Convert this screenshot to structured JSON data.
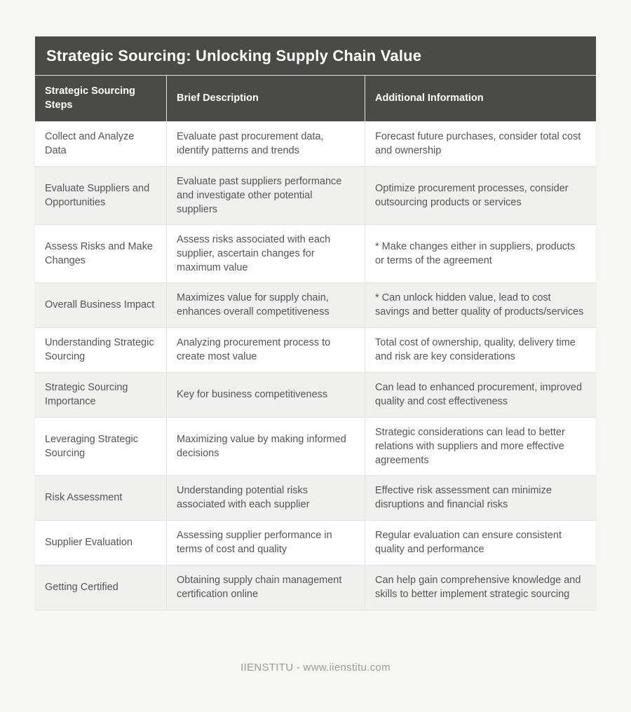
{
  "page": {
    "background_color": "#f6f6f4",
    "header_bg_color": "#4a4a48",
    "row_alt_color": "#f0f0ee",
    "body_text_color": "#55555a",
    "footer_text_color": "#9b9b9b"
  },
  "table": {
    "title": "Strategic Sourcing: Unlocking Supply Chain Value",
    "columns": [
      "Strategic Sourcing Steps",
      "Brief Description",
      "Additional Information"
    ],
    "rows": [
      {
        "step": "Collect and Analyze Data",
        "desc": "Evaluate past procurement data, identify patterns and trends",
        "info": "Forecast future purchases, consider total cost and ownership"
      },
      {
        "step": "Evaluate Suppliers and Opportunities",
        "desc": "Evaluate past suppliers performance and investigate other potential suppliers",
        "info": "Optimize procurement processes, consider outsourcing products or services"
      },
      {
        "step": "Assess Risks and Make Changes",
        "desc": "Assess risks associated with each supplier, ascertain changes for maximum value",
        "info": "* Make changes either in suppliers, products or terms of the agreement"
      },
      {
        "step": "Overall Business Impact",
        "desc": "Maximizes value for supply chain, enhances overall competitiveness",
        "info": "* Can unlock hidden value, lead to cost savings and better quality of products/services"
      },
      {
        "step": "Understanding Strategic Sourcing",
        "desc": "Analyzing procurement process to create most value",
        "info": "Total cost of ownership, quality, delivery time and risk are key considerations"
      },
      {
        "step": "Strategic Sourcing Importance",
        "desc": "Key for business competitiveness",
        "info": "Can lead to enhanced procurement, improved quality and cost effectiveness"
      },
      {
        "step": "Leveraging Strategic Sourcing",
        "desc": "Maximizing value by making informed decisions",
        "info": "Strategic considerations can lead to better relations with suppliers and more effective agreements"
      },
      {
        "step": "Risk Assessment",
        "desc": "Understanding potential risks associated with each supplier",
        "info": "Effective risk assessment can minimize disruptions and financial risks"
      },
      {
        "step": "Supplier Evaluation",
        "desc": "Assessing supplier performance in terms of cost and quality",
        "info": "Regular evaluation can ensure consistent quality and performance"
      },
      {
        "step": "Getting Certified",
        "desc": "Obtaining supply chain management certification online",
        "info": "Can help gain comprehensive knowledge and skills to better implement strategic sourcing"
      }
    ]
  },
  "footer": {
    "text": "IIENSTITU - www.iienstitu.com"
  }
}
